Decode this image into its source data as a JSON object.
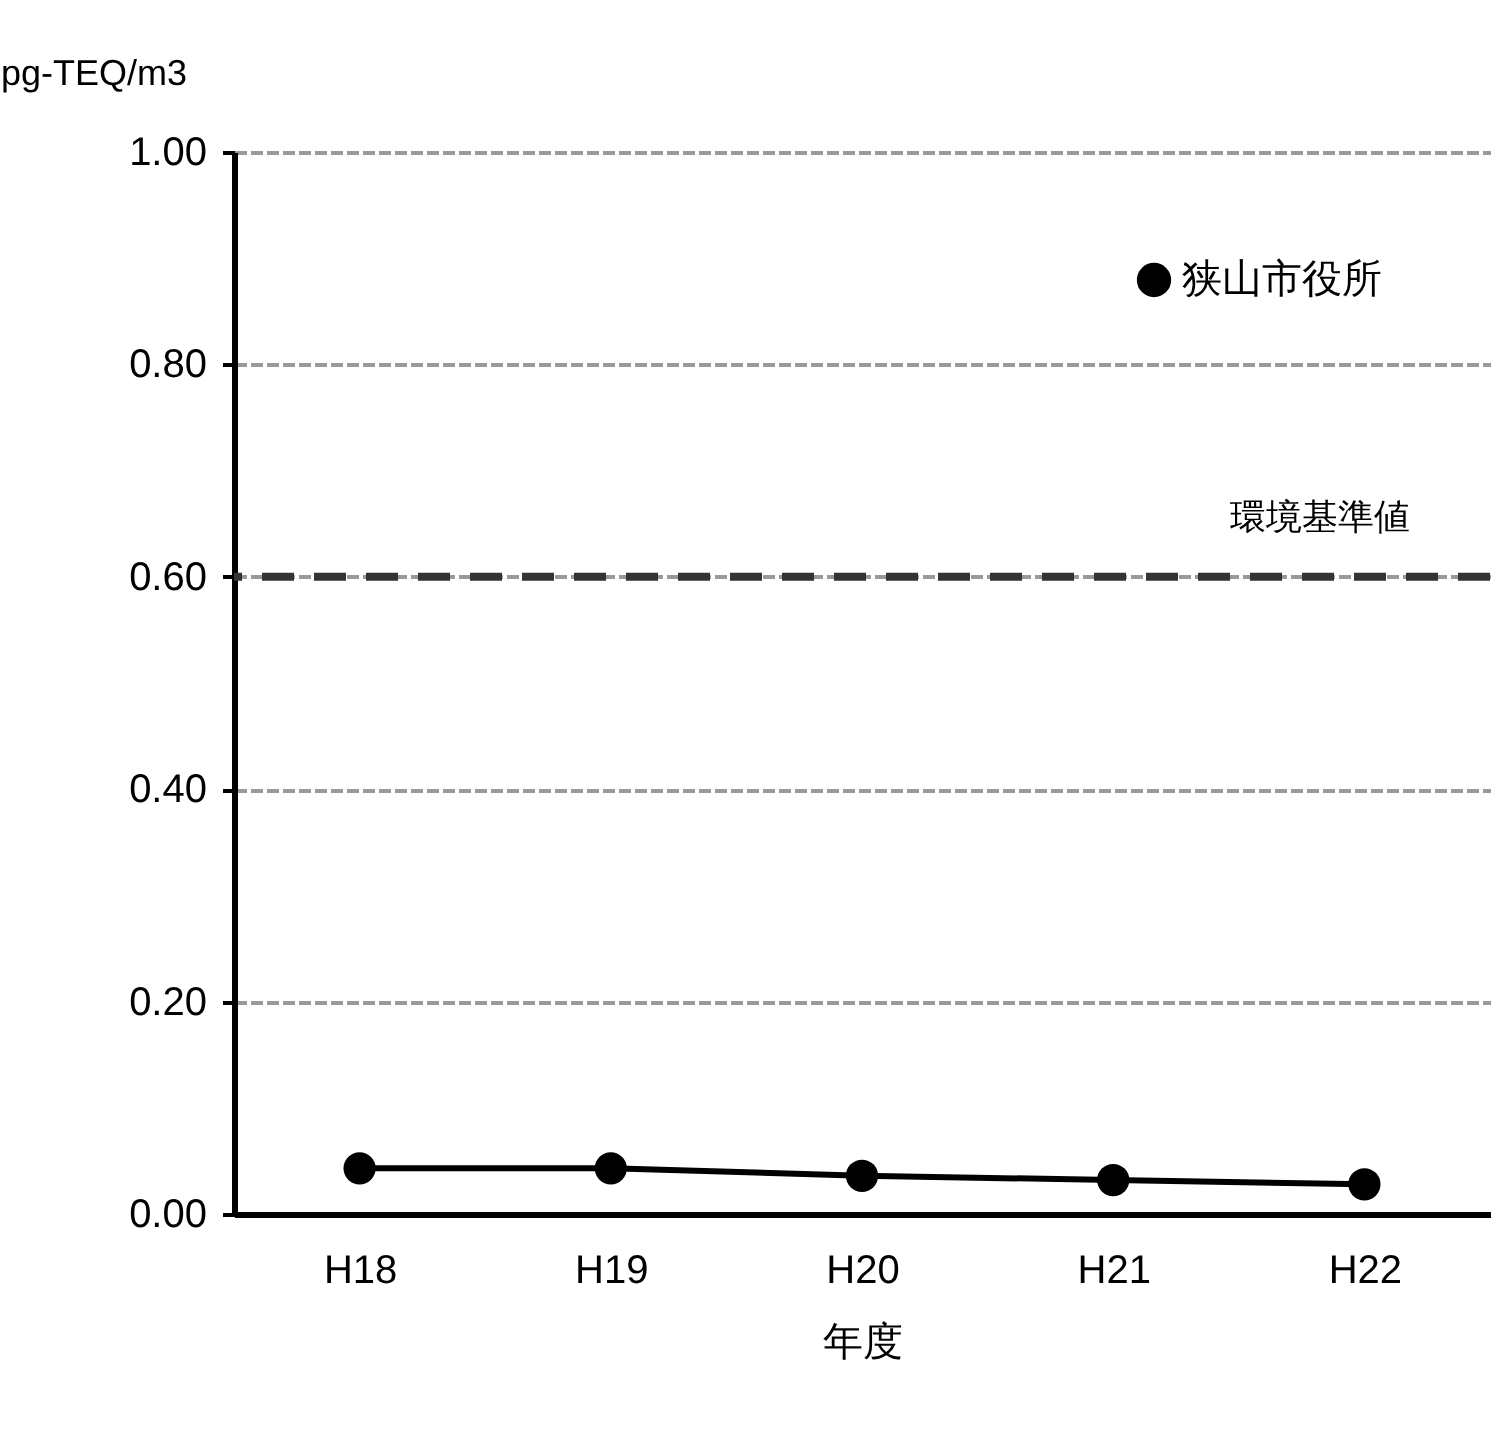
{
  "chart_data": {
    "type": "line",
    "ylabel": "pg-TEQ/m3",
    "xlabel": "年度",
    "categories": [
      "H18",
      "H19",
      "H20",
      "H21",
      "H22"
    ],
    "series": [
      {
        "name": "狭山市役所",
        "color": "#000000",
        "values": [
          0.043,
          0.043,
          0.036,
          0.032,
          0.028
        ]
      }
    ],
    "ylim": [
      0,
      1
    ],
    "yticks": [
      {
        "value": 0,
        "label": "0.00"
      },
      {
        "value": 0.2,
        "label": "0.20"
      },
      {
        "value": 0.4,
        "label": "0.40"
      },
      {
        "value": 0.6,
        "label": "0.60"
      },
      {
        "value": 0.8,
        "label": "0.80"
      },
      {
        "value": 1,
        "label": "1.00"
      }
    ],
    "ref_lines": [
      {
        "axis": "y",
        "value": 0.6,
        "label": "環境基準値",
        "color": "#333333",
        "line_style": "dashed"
      }
    ],
    "grid": "y",
    "legend": "top right",
    "marker": "circle",
    "line_style": "solid"
  }
}
